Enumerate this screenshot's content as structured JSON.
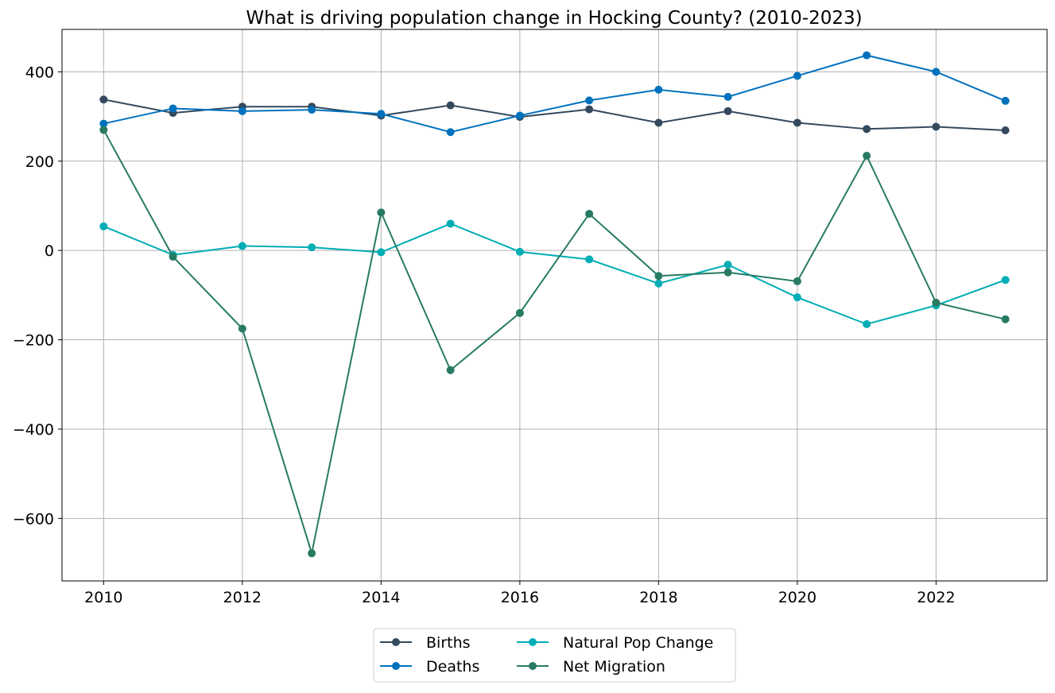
{
  "chart_data": {
    "type": "line",
    "title": "What is driving population change in Hocking County? (2010-2023)",
    "xlabel": "",
    "ylabel": "",
    "x": [
      2010,
      2011,
      2012,
      2013,
      2014,
      2015,
      2016,
      2017,
      2018,
      2019,
      2020,
      2021,
      2022,
      2023
    ],
    "xlim": [
      2009.4,
      2023.6
    ],
    "ylim": [
      -740,
      495
    ],
    "x_ticks": [
      2010,
      2012,
      2014,
      2016,
      2018,
      2020,
      2022
    ],
    "x_tick_labels": [
      "2010",
      "2012",
      "2014",
      "2016",
      "2018",
      "2020",
      "2022"
    ],
    "y_ticks": [
      -600,
      -400,
      -200,
      0,
      200,
      400
    ],
    "y_tick_labels": [
      "−600",
      "−400",
      "−200",
      "0",
      "200",
      "400"
    ],
    "grid": true,
    "legend": {
      "placement": "bottom-center",
      "columns": 2
    },
    "series": [
      {
        "name": "Births",
        "color": "#34495e",
        "values": [
          338,
          308,
          322,
          322,
          302,
          325,
          299,
          316,
          286,
          312,
          286,
          272,
          277,
          269
        ]
      },
      {
        "name": "Deaths",
        "color": "#0072bd",
        "values": [
          284,
          318,
          312,
          315,
          306,
          265,
          302,
          336,
          360,
          344,
          391,
          437,
          400,
          335
        ]
      },
      {
        "name": "Natural Pop Change",
        "color": "#00adb5",
        "values": [
          54,
          -10,
          10,
          7,
          -4,
          60,
          -3,
          -20,
          -74,
          -32,
          -105,
          -165,
          -123,
          -66
        ]
      },
      {
        "name": "Net Migration",
        "color": "#277a63",
        "values": [
          270,
          -14,
          -175,
          -678,
          85,
          -268,
          -140,
          82,
          -57,
          -49,
          -69,
          212,
          -117,
          -154
        ]
      }
    ]
  }
}
